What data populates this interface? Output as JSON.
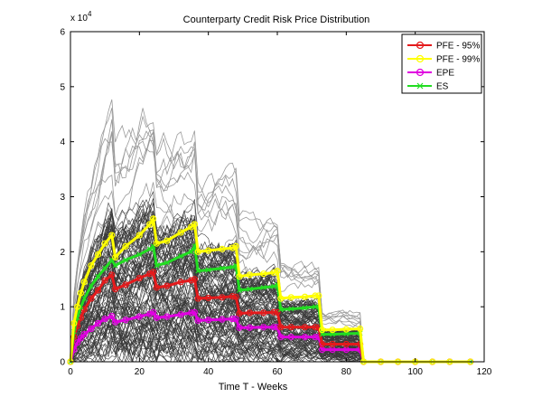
{
  "chart_data": {
    "type": "line",
    "title": "Counterparty Credit Risk Price Distribution",
    "xlabel": "Time T - Weeks",
    "ylabel": "",
    "exponent_label": "x 10",
    "exponent_power": "4",
    "xlim": [
      0,
      120
    ],
    "ylim": [
      0,
      60000
    ],
    "xticks": [
      0,
      20,
      40,
      60,
      80,
      100,
      120
    ],
    "yticks": [
      0,
      10000,
      20000,
      30000,
      40000,
      50000,
      60000
    ],
    "ytick_labels": [
      "0",
      "1",
      "2",
      "3",
      "4",
      "5",
      "6"
    ],
    "grid": false,
    "legend_position": "top-right",
    "simulation_paths": {
      "color": "#3a3a3a",
      "upper_envelope_color": "#9a9a9a",
      "approx_path_count": 120,
      "x_range": [
        0,
        116
      ],
      "cashflow_weeks": [
        12,
        24,
        36,
        48,
        60,
        72,
        84
      ]
    },
    "series": [
      {
        "name": "PFE - 95%",
        "color": "#e41a1c",
        "marker": "circle",
        "points": [
          [
            0,
            0
          ],
          [
            1,
            4500
          ],
          [
            2,
            6500
          ],
          [
            3,
            8000
          ],
          [
            4,
            9500
          ],
          [
            6,
            11500
          ],
          [
            8,
            13000
          ],
          [
            10,
            14800
          ],
          [
            12,
            15800
          ],
          [
            13,
            13200
          ],
          [
            16,
            14000
          ],
          [
            20,
            15200
          ],
          [
            23,
            16000
          ],
          [
            24,
            16300
          ],
          [
            25,
            13500
          ],
          [
            28,
            13800
          ],
          [
            32,
            14500
          ],
          [
            35,
            14800
          ],
          [
            36,
            15000
          ],
          [
            37,
            11500
          ],
          [
            40,
            11600
          ],
          [
            44,
            11700
          ],
          [
            47,
            11900
          ],
          [
            48,
            11800
          ],
          [
            49,
            8800
          ],
          [
            52,
            8900
          ],
          [
            56,
            8900
          ],
          [
            59,
            9000
          ],
          [
            60,
            9000
          ],
          [
            61,
            6300
          ],
          [
            64,
            6300
          ],
          [
            68,
            6300
          ],
          [
            71,
            6300
          ],
          [
            72,
            6200
          ],
          [
            73,
            3200
          ],
          [
            76,
            3200
          ],
          [
            80,
            3200
          ],
          [
            84,
            3200
          ],
          [
            85,
            0
          ],
          [
            90,
            0
          ],
          [
            95,
            0
          ],
          [
            100,
            0
          ],
          [
            105,
            0
          ],
          [
            110,
            0
          ],
          [
            116,
            0
          ]
        ]
      },
      {
        "name": "PFE - 99%",
        "color": "#ffff00",
        "marker": "circle",
        "points": [
          [
            0,
            0
          ],
          [
            1,
            7000
          ],
          [
            2,
            10000
          ],
          [
            3,
            12500
          ],
          [
            4,
            14500
          ],
          [
            6,
            17500
          ],
          [
            8,
            19500
          ],
          [
            10,
            21500
          ],
          [
            12,
            23000
          ],
          [
            13,
            19000
          ],
          [
            16,
            21000
          ],
          [
            20,
            23000
          ],
          [
            23,
            25000
          ],
          [
            24,
            26000
          ],
          [
            25,
            21500
          ],
          [
            28,
            22000
          ],
          [
            32,
            23500
          ],
          [
            35,
            24500
          ],
          [
            36,
            25000
          ],
          [
            37,
            20000
          ],
          [
            40,
            20200
          ],
          [
            44,
            20500
          ],
          [
            47,
            20700
          ],
          [
            48,
            21000
          ],
          [
            49,
            15500
          ],
          [
            52,
            15800
          ],
          [
            56,
            16000
          ],
          [
            59,
            16200
          ],
          [
            60,
            16500
          ],
          [
            61,
            11500
          ],
          [
            64,
            11700
          ],
          [
            68,
            11800
          ],
          [
            71,
            12000
          ],
          [
            72,
            12000
          ],
          [
            73,
            5800
          ],
          [
            76,
            5800
          ],
          [
            80,
            5900
          ],
          [
            84,
            6000
          ],
          [
            85,
            0
          ],
          [
            90,
            0
          ],
          [
            95,
            0
          ],
          [
            100,
            0
          ],
          [
            105,
            0
          ],
          [
            110,
            0
          ],
          [
            116,
            0
          ]
        ]
      },
      {
        "name": "EPE",
        "color": "#e000e0",
        "marker": "circle",
        "points": [
          [
            0,
            0
          ],
          [
            1,
            2200
          ],
          [
            2,
            3500
          ],
          [
            3,
            4300
          ],
          [
            4,
            5000
          ],
          [
            6,
            6000
          ],
          [
            8,
            7000
          ],
          [
            10,
            7800
          ],
          [
            12,
            8300
          ],
          [
            13,
            7200
          ],
          [
            16,
            7600
          ],
          [
            20,
            8200
          ],
          [
            23,
            8700
          ],
          [
            24,
            9000
          ],
          [
            25,
            8000
          ],
          [
            28,
            8200
          ],
          [
            32,
            8600
          ],
          [
            35,
            8900
          ],
          [
            36,
            9000
          ],
          [
            37,
            7500
          ],
          [
            40,
            7600
          ],
          [
            44,
            7700
          ],
          [
            47,
            7800
          ],
          [
            48,
            7800
          ],
          [
            49,
            6200
          ],
          [
            52,
            6200
          ],
          [
            56,
            6300
          ],
          [
            59,
            6300
          ],
          [
            60,
            6300
          ],
          [
            61,
            4500
          ],
          [
            64,
            4500
          ],
          [
            68,
            4500
          ],
          [
            71,
            4500
          ],
          [
            72,
            4500
          ],
          [
            73,
            2200
          ],
          [
            76,
            2200
          ],
          [
            80,
            2200
          ],
          [
            84,
            2200
          ],
          [
            85,
            0
          ],
          [
            90,
            0
          ],
          [
            95,
            0
          ],
          [
            100,
            0
          ],
          [
            105,
            0
          ],
          [
            110,
            0
          ],
          [
            116,
            0
          ]
        ]
      },
      {
        "name": "ES",
        "color": "#22dd22",
        "marker": "x",
        "points": [
          [
            0,
            0
          ],
          [
            1,
            5500
          ],
          [
            2,
            8000
          ],
          [
            3,
            10000
          ],
          [
            4,
            11500
          ],
          [
            6,
            13800
          ],
          [
            8,
            15500
          ],
          [
            10,
            17000
          ],
          [
            12,
            18500
          ],
          [
            13,
            17500
          ],
          [
            16,
            18500
          ],
          [
            20,
            19500
          ],
          [
            23,
            20500
          ],
          [
            24,
            21000
          ],
          [
            25,
            17500
          ],
          [
            28,
            18000
          ],
          [
            32,
            19200
          ],
          [
            35,
            20000
          ],
          [
            36,
            21000
          ],
          [
            37,
            16500
          ],
          [
            40,
            16700
          ],
          [
            44,
            17000
          ],
          [
            47,
            17200
          ],
          [
            48,
            17500
          ],
          [
            49,
            13000
          ],
          [
            52,
            13200
          ],
          [
            56,
            13500
          ],
          [
            59,
            13700
          ],
          [
            60,
            14000
          ],
          [
            61,
            9500
          ],
          [
            64,
            9600
          ],
          [
            68,
            9800
          ],
          [
            71,
            10000
          ],
          [
            72,
            10000
          ],
          [
            73,
            5000
          ],
          [
            76,
            5000
          ],
          [
            80,
            5100
          ],
          [
            84,
            5200
          ],
          [
            85,
            0
          ],
          [
            90,
            0
          ],
          [
            95,
            0
          ],
          [
            100,
            0
          ],
          [
            105,
            0
          ],
          [
            110,
            0
          ],
          [
            116,
            0
          ]
        ]
      }
    ]
  }
}
